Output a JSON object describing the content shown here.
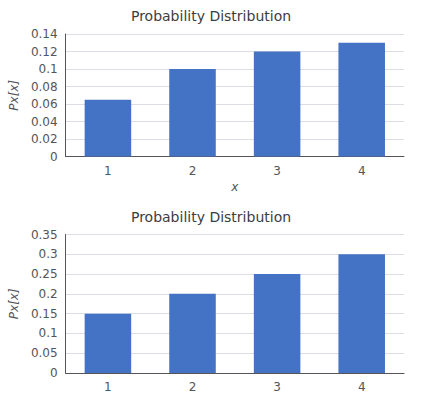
{
  "chart_data": [
    {
      "type": "bar",
      "title": "Probability Distribution",
      "categories": [
        "1",
        "2",
        "3",
        "4"
      ],
      "values": [
        0.065,
        0.1,
        0.12,
        0.13
      ],
      "xlabel": "x",
      "ylabel": "Px[x]",
      "color": "#4472C4",
      "ylim": [
        0,
        0.14
      ],
      "yticks": [
        0,
        0.02,
        0.04,
        0.06,
        0.08,
        0.1,
        0.12,
        0.14
      ],
      "grid": true
    },
    {
      "type": "bar",
      "title": "Probability Distribution",
      "categories": [
        "1",
        "2",
        "3",
        "4"
      ],
      "values": [
        0.15,
        0.2,
        0.25,
        0.3
      ],
      "ylabel": "Px[x]",
      "color": "#4472C4",
      "ylim": [
        0,
        0.35
      ],
      "yticks": [
        0,
        0.05,
        0.1,
        0.15,
        0.2,
        0.25,
        0.3,
        0.35
      ],
      "grid": true
    }
  ]
}
